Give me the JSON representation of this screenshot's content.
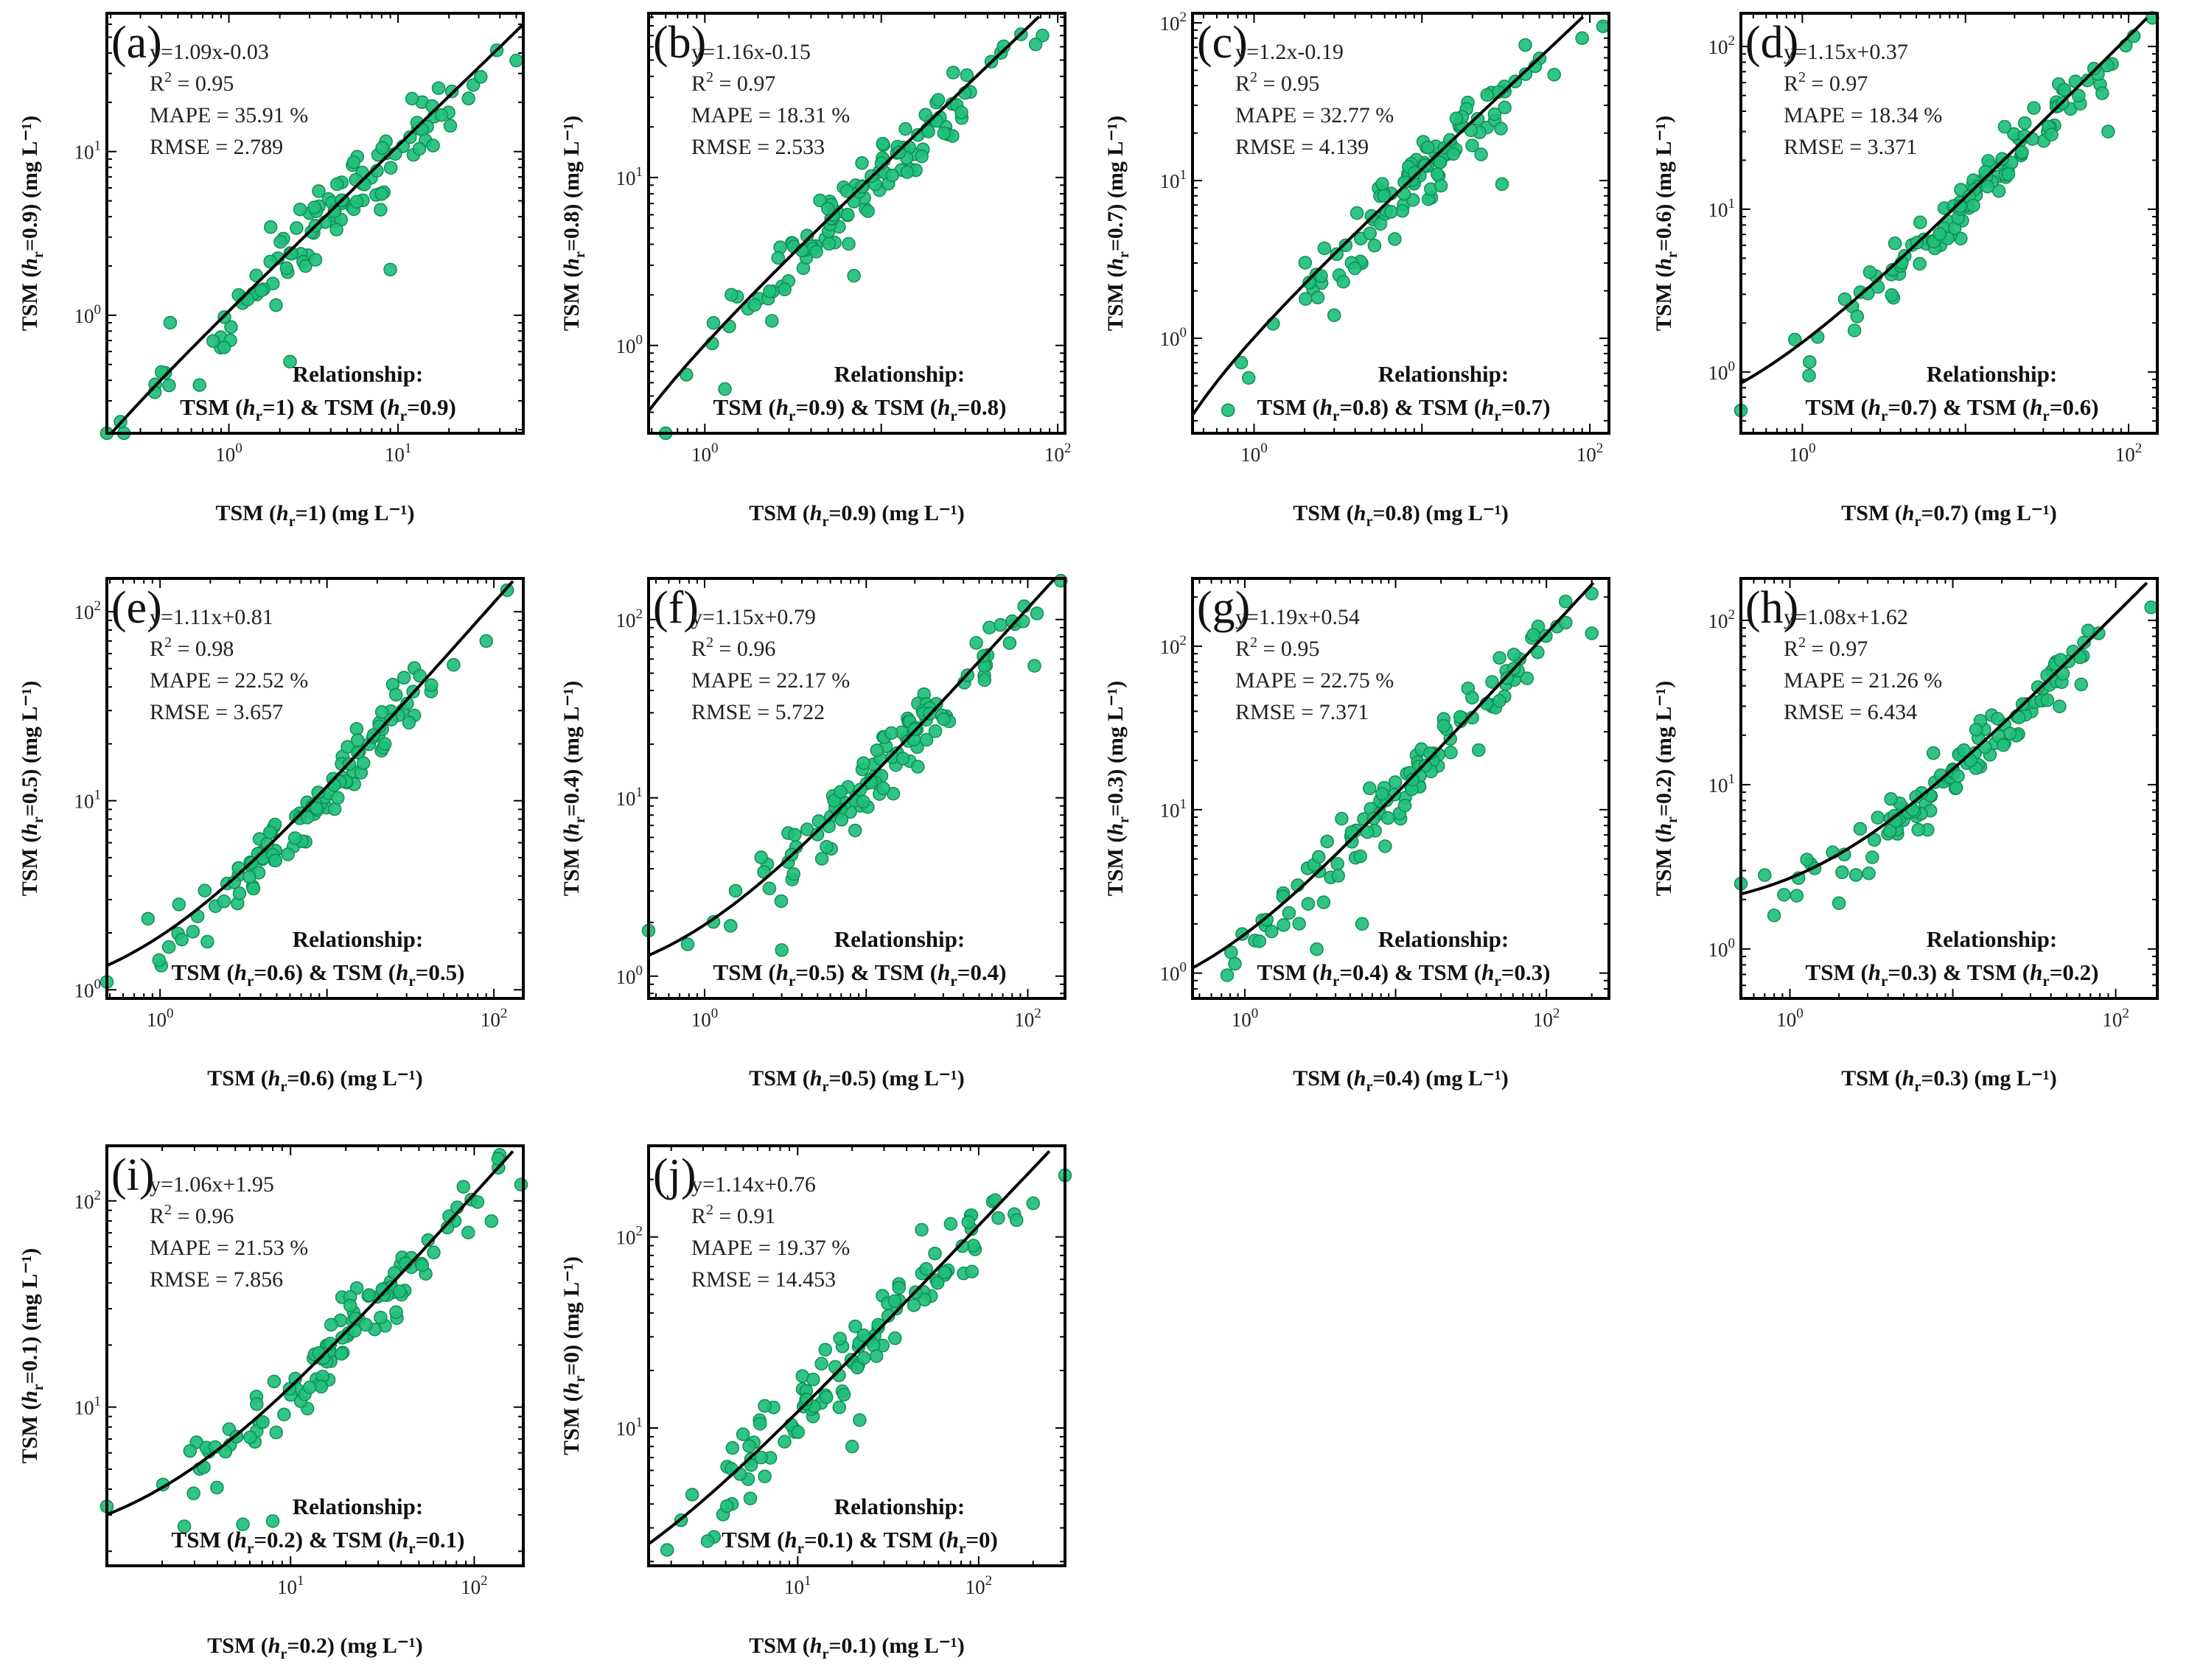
{
  "figure": {
    "units": "(mg L⁻¹)",
    "point_color": "#1fbf7a",
    "point_edge_color": "#0e8f55",
    "line_color": "#000000",
    "relationship_heading": "Relationship:"
  },
  "chart_data": [
    {
      "type": "scatter",
      "label": "(a)",
      "xlabel": "TSM (hr=1) (mg L⁻¹)",
      "ylabel": "TSM (hr=0.9) (mg L⁻¹)",
      "x_hr": "1",
      "y_hr": "0.9",
      "xlim": [
        0.19,
        55
      ],
      "ylim": [
        0.19,
        70
      ],
      "xticks": [
        {
          "v": 1,
          "e": "0"
        },
        {
          "v": 10,
          "e": "1"
        }
      ],
      "yticks": [
        {
          "v": 1,
          "e": "0"
        },
        {
          "v": 10,
          "e": "1"
        }
      ],
      "fit": {
        "slope": 1.09,
        "intercept": -0.03
      },
      "stats": {
        "equation": "y=1.09x-0.03",
        "r2": "0.95",
        "mape": "MAPE = 35.91 %",
        "rmse": "RMSE = 2.789"
      },
      "xmin_data": 0.19,
      "xmax_data": 52,
      "scatter_spread": 0.16,
      "seed": 11,
      "outliers": [
        [
          0.19,
          0.19
        ],
        [
          0.4,
          0.45
        ],
        [
          0.45,
          0.9
        ],
        [
          2.3,
          0.52
        ],
        [
          9,
          1.9
        ],
        [
          50,
          36
        ],
        [
          8,
          5.5
        ]
      ]
    },
    {
      "type": "scatter",
      "label": "(b)",
      "xlabel": "TSM (hr=0.9) (mg L⁻¹)",
      "ylabel": "TSM (hr=0.8) (mg L⁻¹)",
      "x_hr": "0.9",
      "y_hr": "0.8",
      "xlim": [
        0.48,
        110
      ],
      "ylim": [
        0.3,
        95
      ],
      "xticks": [
        {
          "v": 1,
          "e": "0"
        },
        {
          "v": 100,
          "e": "2"
        }
      ],
      "yticks": [
        {
          "v": 1,
          "e": "0"
        },
        {
          "v": 10,
          "e": "1"
        }
      ],
      "fit": {
        "slope": 1.16,
        "intercept": -0.15
      },
      "stats": {
        "equation": "y=1.16x-0.15",
        "r2": "0.97",
        "mape": "MAPE = 18.31 %",
        "rmse": "RMSE = 2.533"
      },
      "xmin_data": 0.75,
      "xmax_data": 82,
      "scatter_spread": 0.13,
      "seed": 23,
      "outliers": [
        [
          0.6,
          0.3
        ],
        [
          1.3,
          0.55
        ],
        [
          7,
          2.6
        ],
        [
          82,
          70
        ],
        [
          75,
          62
        ],
        [
          2.4,
          1.4
        ]
      ]
    },
    {
      "type": "scatter",
      "label": "(c)",
      "xlabel": "TSM (hr=0.8) (mg L⁻¹)",
      "ylabel": "TSM (hr=0.7) (mg L⁻¹)",
      "x_hr": "0.8",
      "y_hr": "0.7",
      "xlim": [
        0.43,
        130
      ],
      "ylim": [
        0.25,
        115
      ],
      "xticks": [
        {
          "v": 1,
          "e": "0"
        },
        {
          "v": 100,
          "e": "2"
        }
      ],
      "yticks": [
        {
          "v": 1,
          "e": "0"
        },
        {
          "v": 10,
          "e": "1"
        },
        {
          "v": 100,
          "e": "2"
        }
      ],
      "fit": {
        "slope": 1.2,
        "intercept": -0.19
      },
      "stats": {
        "equation": "y=1.2x-0.19",
        "r2": "0.95",
        "mape": "MAPE = 32.77 %",
        "rmse": "RMSE = 4.139"
      },
      "xmin_data": 0.7,
      "xmax_data": 85,
      "scatter_spread": 0.14,
      "seed": 37,
      "outliers": [
        [
          0.7,
          0.35
        ],
        [
          120,
          95
        ],
        [
          30,
          9.5
        ],
        [
          3,
          1.4
        ],
        [
          90,
          80
        ]
      ]
    },
    {
      "type": "scatter",
      "label": "(d)",
      "xlabel": "TSM (hr=0.7) (mg L⁻¹)",
      "ylabel": "TSM (hr=0.6) (mg L⁻¹)",
      "x_hr": "0.7",
      "y_hr": "0.6",
      "xlim": [
        0.42,
        150
      ],
      "ylim": [
        0.42,
        160
      ],
      "xticks": [
        {
          "v": 1,
          "e": "0"
        },
        {
          "v": 100,
          "e": "2"
        }
      ],
      "yticks": [
        {
          "v": 1,
          "e": "0"
        },
        {
          "v": 10,
          "e": "1"
        },
        {
          "v": 100,
          "e": "2"
        }
      ],
      "fit": {
        "slope": 1.15,
        "intercept": 0.37
      },
      "stats": {
        "equation": "y=1.15x+0.37",
        "r2": "0.97",
        "mape": "MAPE = 18.34 %",
        "rmse": "RMSE = 3.371"
      },
      "xmin_data": 0.7,
      "xmax_data": 140,
      "scatter_spread": 0.12,
      "seed": 41,
      "outliers": [
        [
          0.42,
          0.58
        ],
        [
          75,
          30
        ],
        [
          140,
          150
        ],
        [
          1.1,
          0.95
        ]
      ]
    },
    {
      "type": "scatter",
      "label": "(e)",
      "xlabel": "TSM (hr=0.6) (mg L⁻¹)",
      "ylabel": "TSM (hr=0.5) (mg L⁻¹)",
      "x_hr": "0.6",
      "y_hr": "0.5",
      "xlim": [
        0.48,
        150
      ],
      "ylim": [
        0.9,
        150
      ],
      "xticks": [
        {
          "v": 1,
          "e": "0"
        },
        {
          "v": 100,
          "e": "2"
        }
      ],
      "yticks": [
        {
          "v": 1,
          "e": "0"
        },
        {
          "v": 10,
          "e": "1"
        },
        {
          "v": 100,
          "e": "2"
        }
      ],
      "fit": {
        "slope": 1.11,
        "intercept": 0.81
      },
      "stats": {
        "equation": "y=1.11x+0.81",
        "r2": "0.98",
        "mape": "MAPE = 22.52 %",
        "rmse": "RMSE = 3.657"
      },
      "xmin_data": 0.5,
      "xmax_data": 120,
      "scatter_spread": 0.11,
      "seed": 53,
      "outliers": [
        [
          0.48,
          1.1
        ],
        [
          120,
          130
        ],
        [
          90,
          70
        ]
      ]
    },
    {
      "type": "scatter",
      "label": "(f)",
      "xlabel": "TSM (hr=0.5) (mg L⁻¹)",
      "ylabel": "TSM (hr=0.4) (mg L⁻¹)",
      "x_hr": "0.5",
      "y_hr": "0.4",
      "xlim": [
        0.45,
        170
      ],
      "ylim": [
        0.75,
        170
      ],
      "xticks": [
        {
          "v": 1,
          "e": "0"
        },
        {
          "v": 100,
          "e": "2"
        }
      ],
      "yticks": [
        {
          "v": 1,
          "e": "0"
        },
        {
          "v": 10,
          "e": "1"
        },
        {
          "v": 100,
          "e": "2"
        }
      ],
      "fit": {
        "slope": 1.15,
        "intercept": 0.79
      },
      "stats": {
        "equation": "y=1.15x+0.79",
        "r2": "0.96",
        "mape": "MAPE = 22.17 %",
        "rmse": "RMSE = 5.722"
      },
      "xmin_data": 0.75,
      "xmax_data": 160,
      "scatter_spread": 0.14,
      "seed": 61,
      "outliers": [
        [
          0.45,
          1.8
        ],
        [
          160,
          165
        ],
        [
          110,
          55
        ],
        [
          3,
          1.4
        ]
      ]
    },
    {
      "type": "scatter",
      "label": "(g)",
      "xlabel": "TSM (hr=0.4) (mg L⁻¹)",
      "ylabel": "TSM (hr=0.3) (mg L⁻¹)",
      "x_hr": "0.4",
      "y_hr": "0.3",
      "xlim": [
        0.45,
        260
      ],
      "ylim": [
        0.7,
        260
      ],
      "xticks": [
        {
          "v": 1,
          "e": "0"
        },
        {
          "v": 100,
          "e": "2"
        }
      ],
      "yticks": [
        {
          "v": 1,
          "e": "0"
        },
        {
          "v": 10,
          "e": "1"
        },
        {
          "v": 100,
          "e": "2"
        }
      ],
      "fit": {
        "slope": 1.19,
        "intercept": 0.54
      },
      "stats": {
        "equation": "y=1.19x+0.54",
        "r2": "0.95",
        "mape": "MAPE = 22.75 %",
        "rmse": "RMSE = 7.371"
      },
      "xmin_data": 0.6,
      "xmax_data": 200,
      "scatter_spread": 0.15,
      "seed": 71,
      "outliers": [
        [
          3,
          1.4
        ],
        [
          200,
          120
        ],
        [
          200,
          210
        ],
        [
          6,
          2
        ]
      ]
    },
    {
      "type": "scatter",
      "label": "(h)",
      "xlabel": "TSM (hr=0.3) (mg L⁻¹)",
      "ylabel": "TSM (hr=0.2) (mg L⁻¹)",
      "x_hr": "0.3",
      "y_hr": "0.2",
      "xlim": [
        0.5,
        180
      ],
      "ylim": [
        0.5,
        180
      ],
      "xticks": [
        {
          "v": 1,
          "e": "0"
        },
        {
          "v": 100,
          "e": "2"
        }
      ],
      "yticks": [
        {
          "v": 1,
          "e": "0"
        },
        {
          "v": 10,
          "e": "1"
        },
        {
          "v": 100,
          "e": "2"
        }
      ],
      "fit": {
        "slope": 1.08,
        "intercept": 1.62
      },
      "stats": {
        "equation": "y=1.08x+1.62",
        "r2": "0.97",
        "mape": "MAPE = 21.26 %",
        "rmse": "RMSE = 6.434"
      },
      "xmin_data": 0.7,
      "xmax_data": 165,
      "scatter_spread": 0.12,
      "seed": 83,
      "outliers": [
        [
          0.5,
          2.5
        ],
        [
          0.8,
          1.6
        ],
        [
          165,
          120
        ],
        [
          2,
          1.9
        ]
      ]
    },
    {
      "type": "scatter",
      "label": "(i)",
      "xlabel": "TSM (hr=0.2) (mg L⁻¹)",
      "ylabel": "TSM (hr=0.1) (mg L⁻¹)",
      "x_hr": "0.2",
      "y_hr": "0.1",
      "xlim": [
        1,
        185
      ],
      "ylim": [
        1.7,
        185
      ],
      "xticks": [
        {
          "v": 10,
          "e": "1"
        },
        {
          "v": 100,
          "e": "2"
        }
      ],
      "yticks": [
        {
          "v": 10,
          "e": "1"
        },
        {
          "v": 100,
          "e": "2"
        }
      ],
      "fit": {
        "slope": 1.06,
        "intercept": 1.95
      },
      "stats": {
        "equation": "y=1.06x+1.95",
        "r2": "0.96",
        "mape": "MAPE = 21.53 %",
        "rmse": "RMSE = 7.856"
      },
      "xmin_data": 1.3,
      "xmax_data": 180,
      "scatter_spread": 0.11,
      "seed": 97,
      "outliers": [
        [
          1,
          3.3
        ],
        [
          5.5,
          2.7
        ],
        [
          8,
          2.8
        ],
        [
          180,
          120
        ],
        [
          135,
          160
        ]
      ]
    },
    {
      "type": "scatter",
      "label": "(j)",
      "xlabel": "TSM (hr=0.1) (mg L⁻¹)",
      "ylabel": "TSM (hr=0) (mg L⁻¹)",
      "x_hr": "0.1",
      "y_hr": "0",
      "xlim": [
        1.5,
        300
      ],
      "ylim": [
        1.9,
        300
      ],
      "xticks": [
        {
          "v": 10,
          "e": "1"
        },
        {
          "v": 100,
          "e": "2"
        }
      ],
      "yticks": [
        {
          "v": 10,
          "e": "1"
        },
        {
          "v": 100,
          "e": "2"
        }
      ],
      "fit": {
        "slope": 1.14,
        "intercept": 0.76
      },
      "stats": {
        "equation": "y=1.14x+0.76",
        "r2": "0.91",
        "mape": "MAPE = 19.37 %",
        "rmse": "RMSE = 14.453"
      },
      "xmin_data": 1.9,
      "xmax_data": 240,
      "scatter_spread": 0.16,
      "seed": 109,
      "outliers": [
        [
          1.9,
          2.3
        ],
        [
          300,
          210
        ],
        [
          200,
          150
        ],
        [
          22,
          11
        ],
        [
          20,
          8
        ]
      ]
    }
  ]
}
